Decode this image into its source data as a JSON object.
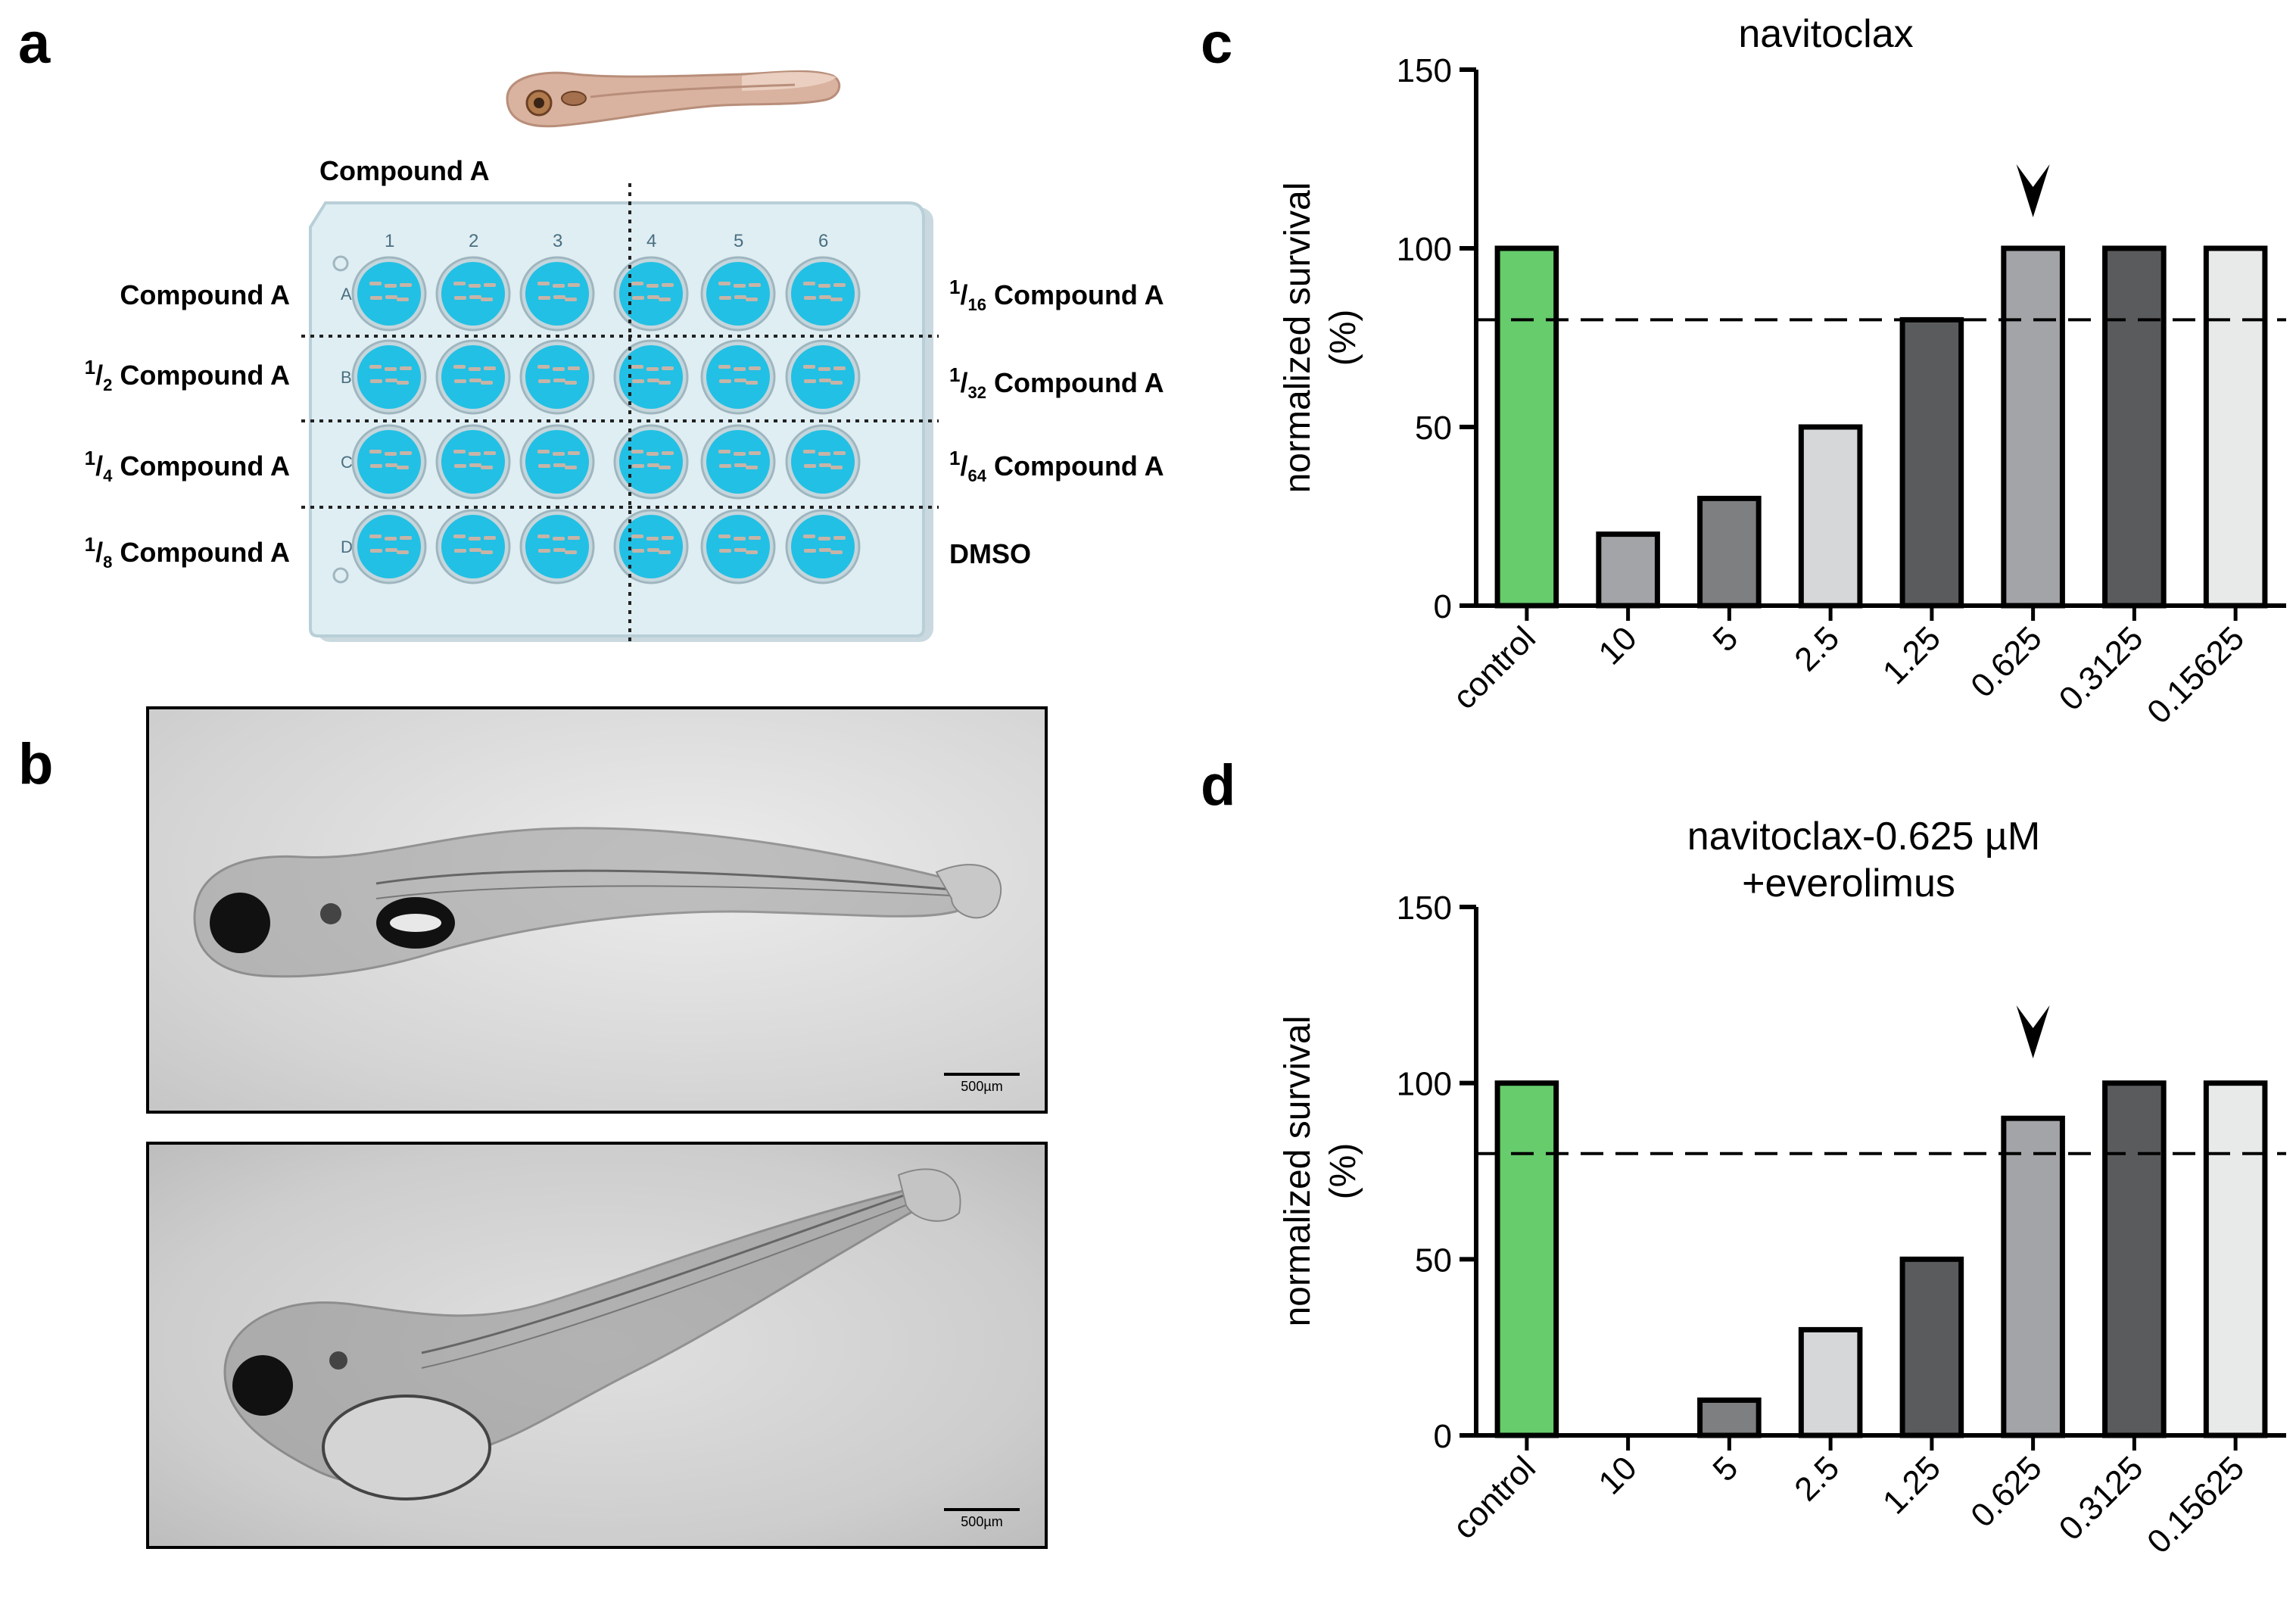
{
  "panels": {
    "a": "a",
    "b": "b",
    "c": "c",
    "d": "d"
  },
  "panel_a": {
    "top_label": "Compound A",
    "columns": [
      "1",
      "2",
      "3",
      "4",
      "5",
      "6"
    ],
    "rows": [
      "A",
      "B",
      "C",
      "D"
    ],
    "left_labels": [
      {
        "num": "",
        "slash": "",
        "den": "",
        "text": "Compound A"
      },
      {
        "num": "1",
        "slash": "/",
        "den": "2",
        "text": " Compound A"
      },
      {
        "num": "1",
        "slash": "/",
        "den": "4",
        "text": " Compound A"
      },
      {
        "num": "1",
        "slash": "/",
        "den": "8",
        "text": " Compound A"
      }
    ],
    "right_labels": [
      {
        "num": "1",
        "slash": "/",
        "den": "16",
        "text": " Compound A"
      },
      {
        "num": "1",
        "slash": "/",
        "den": "32",
        "text": " Compound A"
      },
      {
        "num": "1",
        "slash": "/",
        "den": "64",
        "text": " Compound A"
      },
      {
        "num": "",
        "slash": "",
        "den": "",
        "text": "DMSO"
      }
    ],
    "colors": {
      "well": "#22c0e4",
      "plate": "#dfeef3",
      "fish": "#d9b3a0"
    }
  },
  "panel_b": {
    "scale_top": "500µm",
    "scale_bottom": "500µm"
  },
  "chart_data": [
    {
      "type": "bar",
      "title": "navitoclax",
      "ylabel": "normalized survival",
      "ylabel2": "(%)",
      "ylim": [
        0,
        150
      ],
      "yticks": [
        "0",
        "50",
        "100",
        "150"
      ],
      "categories": [
        "control",
        "10",
        "5",
        "2.5",
        "1.25",
        "0.625",
        "0.3125",
        "0.15625"
      ],
      "values": [
        100,
        20,
        30,
        50,
        80,
        100,
        100,
        100
      ],
      "colors": [
        "#66cc6c",
        "#a2a4a7",
        "#7d7f80",
        "#d6d7d8",
        "#5a5b5c",
        "#a2a4a7",
        "#5a5b5c",
        "#e8e9e9"
      ],
      "threshold": 80,
      "marker_category": "0.625"
    },
    {
      "type": "bar",
      "title": "navitoclax-0.625 µM",
      "subtitle": "+everolimus",
      "ylabel": "normalized survival",
      "ylabel2": "(%)",
      "ylim": [
        0,
        150
      ],
      "yticks": [
        "0",
        "50",
        "100",
        "150"
      ],
      "categories": [
        "control",
        "10",
        "5",
        "2.5",
        "1.25",
        "0.625",
        "0.3125",
        "0.15625"
      ],
      "values": [
        100,
        0,
        10,
        30,
        50,
        90,
        100,
        100
      ],
      "colors": [
        "#66cc6c",
        "#a2a4a7",
        "#7d7f80",
        "#d6d7d8",
        "#5a5b5c",
        "#a2a4a7",
        "#5a5b5c",
        "#e8e9e9"
      ],
      "threshold": 80,
      "marker_category": "0.625"
    }
  ]
}
